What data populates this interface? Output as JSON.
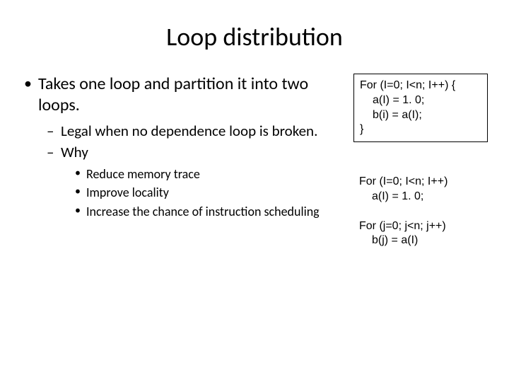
{
  "title": "Loop distribution",
  "bullets": {
    "p1": "Takes one loop and partition it into two loops.",
    "p2": "Legal when no dependence loop is broken.",
    "p3": "Why",
    "p4": "Reduce memory trace",
    "p5": "Improve locality",
    "p6": "Increase the chance of instruction scheduling"
  },
  "code": {
    "box1": {
      "l1": "For (I=0; I<n; I++) {",
      "l2": "a(I) = 1. 0;",
      "l3": "b(i) = a(I);",
      "l4": "}"
    },
    "box2": {
      "l1": "For (I=0; I<n; I++)",
      "l2": "a(I) = 1. 0;",
      "l3": "For (j=0; j<n; j++)",
      "l4": "b(j) = a(I)"
    }
  },
  "styling": {
    "background_color": "#ffffff",
    "text_color": "#000000",
    "title_fontsize": 36,
    "level1_fontsize": 24,
    "level2_fontsize": 21,
    "level3_fontsize": 18,
    "code_fontsize": 16,
    "code_box_border": "#000000",
    "slide_width": 720,
    "slide_height": 540
  }
}
